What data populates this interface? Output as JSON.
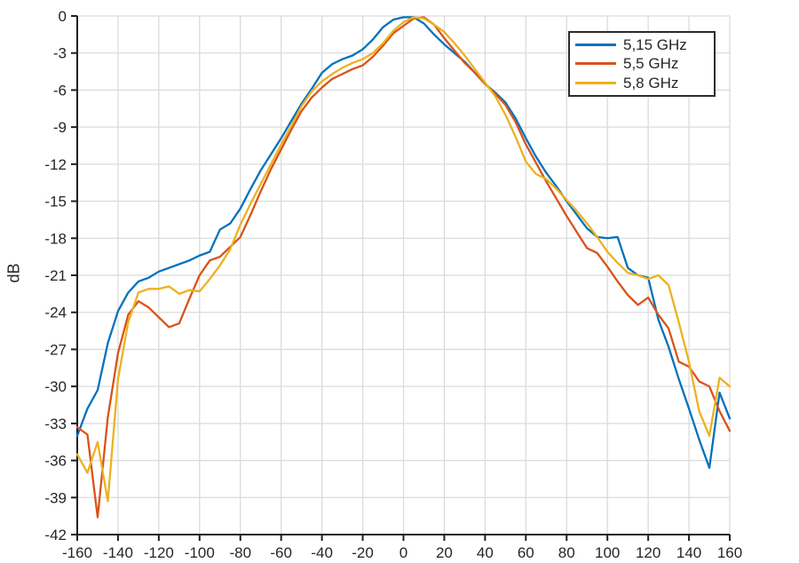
{
  "chart_data": {
    "type": "line",
    "title": "",
    "xlabel": "",
    "ylabel": "dB",
    "xlim": [
      -160,
      160
    ],
    "ylim": [
      -42,
      0
    ],
    "xtick_step": 20,
    "ytick_step": 3,
    "grid": true,
    "legend_position": "top-right",
    "axis_color": "#1f1f1f",
    "grid_color": "#dbdbdb",
    "x_degrees": [
      -160,
      -155,
      -150,
      -145,
      -140,
      -135,
      -130,
      -125,
      -120,
      -115,
      -110,
      -105,
      -100,
      -95,
      -90,
      -85,
      -80,
      -75,
      -70,
      -65,
      -60,
      -55,
      -50,
      -45,
      -40,
      -35,
      -30,
      -25,
      -20,
      -15,
      -10,
      -5,
      0,
      5,
      10,
      15,
      20,
      25,
      30,
      35,
      40,
      45,
      50,
      55,
      60,
      65,
      70,
      75,
      80,
      85,
      90,
      95,
      100,
      105,
      110,
      115,
      120,
      125,
      130,
      135,
      140,
      145,
      150,
      155,
      160
    ],
    "series": [
      {
        "name": "5,15 GHz",
        "color": "#0072BD",
        "values": [
          -34.0,
          -31.8,
          -30.3,
          -26.5,
          -23.9,
          -22.4,
          -21.5,
          -21.2,
          -20.7,
          -20.4,
          -20.1,
          -19.8,
          -19.4,
          -19.1,
          -17.3,
          -16.8,
          -15.6,
          -14.0,
          -12.5,
          -11.2,
          -9.9,
          -8.5,
          -7.1,
          -5.9,
          -4.6,
          -3.9,
          -3.5,
          -3.2,
          -2.7,
          -1.9,
          -0.9,
          -0.3,
          -0.1,
          -0.1,
          -0.6,
          -1.5,
          -2.3,
          -3.0,
          -3.7,
          -4.6,
          -5.5,
          -6.2,
          -7.0,
          -8.3,
          -9.9,
          -11.4,
          -12.7,
          -13.8,
          -15.0,
          -16.1,
          -17.2,
          -17.9,
          -18.0,
          -17.9,
          -20.4,
          -21.0,
          -21.2,
          -24.6,
          -26.8,
          -29.4,
          -31.8,
          -34.3,
          -36.6,
          -30.5,
          -32.6
        ]
      },
      {
        "name": "5,5 GHz",
        "color": "#D95319",
        "values": [
          -33.3,
          -33.9,
          -40.6,
          -32.5,
          -27.3,
          -24.2,
          -23.1,
          -23.6,
          -24.4,
          -25.2,
          -24.9,
          -22.9,
          -21.0,
          -19.8,
          -19.5,
          -18.7,
          -17.9,
          -16.1,
          -14.2,
          -12.4,
          -10.8,
          -9.2,
          -7.7,
          -6.6,
          -5.8,
          -5.1,
          -4.7,
          -4.3,
          -4.0,
          -3.3,
          -2.4,
          -1.4,
          -0.8,
          -0.2,
          -0.1,
          -0.7,
          -1.8,
          -2.8,
          -3.8,
          -4.6,
          -5.5,
          -6.3,
          -7.2,
          -8.6,
          -10.4,
          -11.9,
          -13.4,
          -14.8,
          -16.2,
          -17.5,
          -18.8,
          -19.2,
          -20.3,
          -21.5,
          -22.6,
          -23.4,
          -22.8,
          -24.2,
          -25.3,
          -28.0,
          -28.4,
          -29.6,
          -30.0,
          -32.0,
          -33.6
        ]
      },
      {
        "name": "5,8 GHz",
        "color": "#EDB120",
        "values": [
          -35.5,
          -37.0,
          -34.5,
          -39.3,
          -29.4,
          -24.8,
          -22.4,
          -22.1,
          -22.1,
          -21.9,
          -22.5,
          -22.2,
          -22.3,
          -21.3,
          -20.2,
          -18.9,
          -16.9,
          -15.2,
          -13.6,
          -12.0,
          -10.4,
          -8.9,
          -7.3,
          -6.1,
          -5.3,
          -4.7,
          -4.2,
          -3.8,
          -3.5,
          -3.0,
          -2.2,
          -1.2,
          -0.5,
          -0.1,
          -0.2,
          -0.7,
          -1.3,
          -2.2,
          -3.2,
          -4.3,
          -5.4,
          -6.5,
          -8.0,
          -9.8,
          -11.8,
          -12.8,
          -13.2,
          -14.0,
          -14.9,
          -15.8,
          -16.8,
          -17.9,
          -19.1,
          -20.0,
          -20.8,
          -21.0,
          -21.3,
          -21.0,
          -21.8,
          -24.8,
          -28.0,
          -32.0,
          -34.0,
          -29.3,
          -30.0
        ]
      }
    ]
  }
}
